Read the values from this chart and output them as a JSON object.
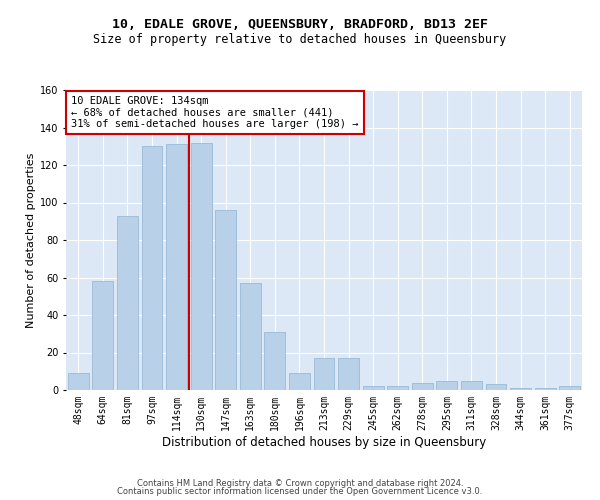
{
  "title": "10, EDALE GROVE, QUEENSBURY, BRADFORD, BD13 2EF",
  "subtitle": "Size of property relative to detached houses in Queensbury",
  "xlabel": "Distribution of detached houses by size in Queensbury",
  "ylabel": "Number of detached properties",
  "categories": [
    "48sqm",
    "64sqm",
    "81sqm",
    "97sqm",
    "114sqm",
    "130sqm",
    "147sqm",
    "163sqm",
    "180sqm",
    "196sqm",
    "213sqm",
    "229sqm",
    "245sqm",
    "262sqm",
    "278sqm",
    "295sqm",
    "311sqm",
    "328sqm",
    "344sqm",
    "361sqm",
    "377sqm"
  ],
  "values": [
    9,
    58,
    93,
    130,
    131,
    132,
    96,
    57,
    31,
    9,
    17,
    17,
    2,
    2,
    4,
    5,
    5,
    3,
    1,
    1,
    2
  ],
  "bar_color": "#b8d0e8",
  "bar_edge_color": "#90b4d4",
  "vline_index": 4.5,
  "annotation_line1": "10 EDALE GROVE: 134sqm",
  "annotation_line2": "← 68% of detached houses are smaller (441)",
  "annotation_line3": "31% of semi-detached houses are larger (198) →",
  "annotation_box_color": "#ffffff",
  "annotation_box_edge": "#cc0000",
  "vline_color": "#cc0000",
  "ylim": [
    0,
    160
  ],
  "yticks": [
    0,
    20,
    40,
    60,
    80,
    100,
    120,
    140,
    160
  ],
  "background_color": "#dce8f5",
  "grid_color": "#ffffff",
  "footer1": "Contains HM Land Registry data © Crown copyright and database right 2024.",
  "footer2": "Contains public sector information licensed under the Open Government Licence v3.0.",
  "title_fontsize": 9.5,
  "subtitle_fontsize": 8.5,
  "xlabel_fontsize": 8.5,
  "ylabel_fontsize": 8,
  "tick_fontsize": 7,
  "annotation_fontsize": 7.5,
  "footer_fontsize": 6
}
